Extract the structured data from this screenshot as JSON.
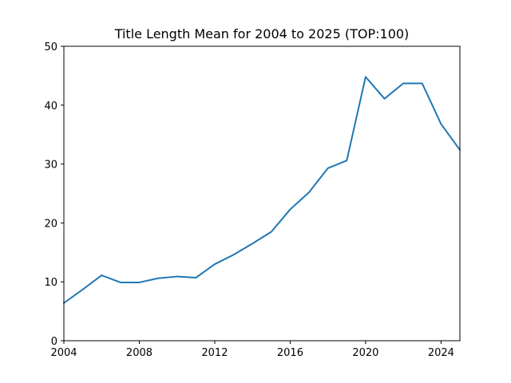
{
  "chart_data": {
    "type": "line",
    "title": "Title Length Mean for 2004 to 2025 (TOP:100)",
    "xlabel": "",
    "ylabel": "",
    "xlim": [
      2004,
      2025
    ],
    "ylim": [
      0,
      50
    ],
    "x_ticks": [
      2004,
      2008,
      2012,
      2016,
      2020,
      2024
    ],
    "y_ticks": [
      0,
      10,
      20,
      30,
      40,
      50
    ],
    "grid": false,
    "legend": false,
    "series": [
      {
        "color": "#1f77b4",
        "x": [
          2004,
          2005,
          2006,
          2007,
          2008,
          2009,
          2010,
          2011,
          2012,
          2013,
          2014,
          2015,
          2016,
          2017,
          2018,
          2019,
          2020,
          2021,
          2022,
          2023,
          2024,
          2025
        ],
        "y": [
          6.4,
          8.7,
          11.1,
          9.9,
          9.9,
          10.6,
          10.9,
          10.7,
          13.0,
          14.6,
          16.5,
          18.5,
          22.3,
          25.2,
          29.3,
          30.6,
          44.8,
          41.1,
          43.7,
          43.7,
          36.8,
          32.4
        ]
      }
    ]
  }
}
